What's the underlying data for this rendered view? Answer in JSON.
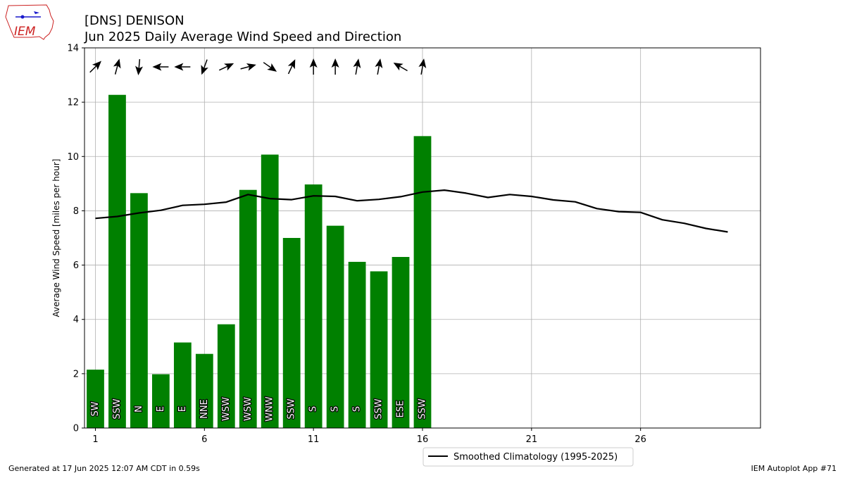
{
  "header": {
    "title_line1": "[DNS] DENISON",
    "title_line2": "Jun 2025 Daily Average Wind Speed and Direction",
    "logo_text": "IEM"
  },
  "footer": {
    "left": "Generated at 17 Jun 2025 12:07 AM CDT in 0.59s",
    "right": "IEM Autoplot App #71"
  },
  "colors": {
    "bar": "#008000",
    "climo_line": "#000000",
    "grid": "#b0b0b0",
    "logo_red": "#cc2222",
    "logo_blue": "#1a1acc"
  },
  "chart_data": {
    "type": "bar",
    "ylabel": "Average Wind Speed [miles per hour]",
    "xlim": [
      0.5,
      31.5
    ],
    "ylim": [
      0,
      14
    ],
    "xticks": [
      1,
      6,
      11,
      16,
      21,
      26
    ],
    "yticks": [
      0,
      2,
      4,
      6,
      8,
      10,
      12,
      14
    ],
    "grid": true,
    "days": [
      1,
      2,
      3,
      4,
      5,
      6,
      7,
      8,
      9,
      10,
      11,
      12,
      13,
      14,
      15,
      16
    ],
    "speeds": [
      2.15,
      12.27,
      8.65,
      1.98,
      3.15,
      2.73,
      3.82,
      8.77,
      10.07,
      7.0,
      8.97,
      7.45,
      6.12,
      5.77,
      6.3,
      10.75
    ],
    "directions": [
      "SW",
      "SSW",
      "N",
      "E",
      "E",
      "NNE",
      "WSW",
      "WSW",
      "WNW",
      "SSW",
      "S",
      "S",
      "S",
      "SSW",
      "ESE",
      "SSW"
    ],
    "arrow_angles_deg": [
      45,
      15,
      185,
      270,
      270,
      200,
      65,
      75,
      125,
      25,
      0,
      0,
      10,
      10,
      300,
      10
    ],
    "arrow_y": 13.3,
    "climatology": {
      "name": "Smoothed Climatology (1995-2025)",
      "x": [
        1,
        2,
        3,
        4,
        5,
        6,
        7,
        8,
        9,
        10,
        11,
        12,
        13,
        14,
        15,
        16,
        17,
        18,
        19,
        20,
        21,
        22,
        23,
        24,
        25,
        26,
        27,
        28,
        29,
        30
      ],
      "y": [
        7.72,
        7.79,
        7.92,
        8.02,
        8.2,
        8.24,
        8.32,
        8.6,
        8.45,
        8.41,
        8.55,
        8.53,
        8.37,
        8.42,
        8.52,
        8.69,
        8.76,
        8.65,
        8.49,
        8.6,
        8.53,
        8.4,
        8.33,
        8.08,
        7.97,
        7.94,
        7.67,
        7.54,
        7.35,
        7.22
      ]
    },
    "legend_position": "below-center"
  }
}
